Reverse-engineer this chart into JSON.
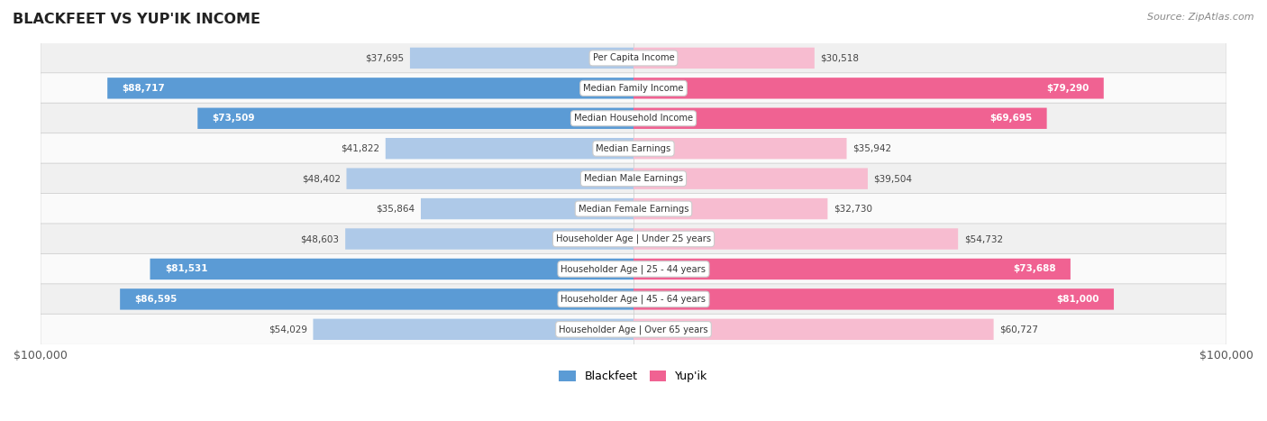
{
  "title": "BLACKFEET VS YUP'IK INCOME",
  "source": "Source: ZipAtlas.com",
  "categories": [
    "Per Capita Income",
    "Median Family Income",
    "Median Household Income",
    "Median Earnings",
    "Median Male Earnings",
    "Median Female Earnings",
    "Householder Age | Under 25 years",
    "Householder Age | 25 - 44 years",
    "Householder Age | 45 - 64 years",
    "Householder Age | Over 65 years"
  ],
  "blackfeet_values": [
    37695,
    88717,
    73509,
    41822,
    48402,
    35864,
    48603,
    81531,
    86595,
    54029
  ],
  "yupik_values": [
    30518,
    79290,
    69695,
    35942,
    39504,
    32730,
    54732,
    73688,
    81000,
    60727
  ],
  "max_value": 100000,
  "blackfeet_color_light": "#aec9e8",
  "blackfeet_color_dark": "#5b9bd5",
  "yupik_color_light": "#f7bcd0",
  "yupik_color_dark": "#f06292",
  "bg_color": "#ffffff",
  "row_bg_even": "#f0f0f0",
  "row_bg_odd": "#fafafa",
  "x_axis_label_left": "$100,000",
  "x_axis_label_right": "$100,000",
  "dark_threshold": 65000
}
